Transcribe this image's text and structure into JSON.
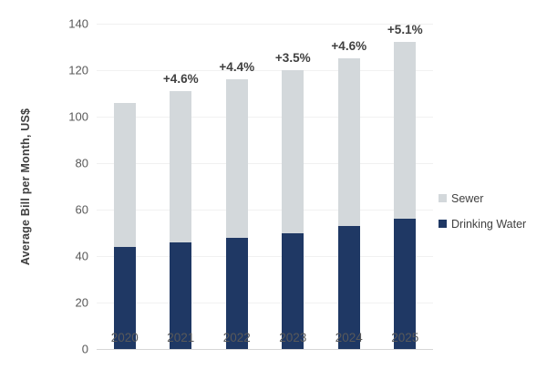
{
  "chart_data": {
    "type": "bar",
    "stacked": true,
    "title": "",
    "ylabel": "Average Bill per Month, US$",
    "xlabel": "",
    "categories": [
      "2020",
      "2021",
      "2022",
      "2023",
      "2024",
      "2025"
    ],
    "series": [
      {
        "name": "Drinking Water",
        "color": "#1f3864",
        "values": [
          44,
          46,
          48,
          50,
          53,
          56
        ]
      },
      {
        "name": "Sewer",
        "color": "#d3d8db",
        "values": [
          62,
          65,
          68,
          70,
          72,
          76
        ]
      }
    ],
    "totals": [
      106,
      111,
      116,
      120,
      125,
      132
    ],
    "bar_labels": [
      "",
      "+4.6%",
      "+4.4%",
      "+3.5%",
      "+4.6%",
      "+5.1%"
    ],
    "ylim": [
      0,
      140
    ],
    "yticks": [
      0,
      20,
      40,
      60,
      80,
      100,
      120,
      140
    ],
    "grid": true,
    "legend_position": "right",
    "legend": [
      {
        "label": "Sewer",
        "color": "#d3d8db"
      },
      {
        "label": "Drinking Water",
        "color": "#1f3864"
      }
    ]
  },
  "colors": {
    "background": "#ffffff",
    "gridline": "#f1f1f1",
    "axis_baseline": "#d6d6d6",
    "tick_text": "#595959",
    "label_text": "#404040",
    "drinking_water": "#1f3864",
    "sewer": "#d3d8db"
  }
}
